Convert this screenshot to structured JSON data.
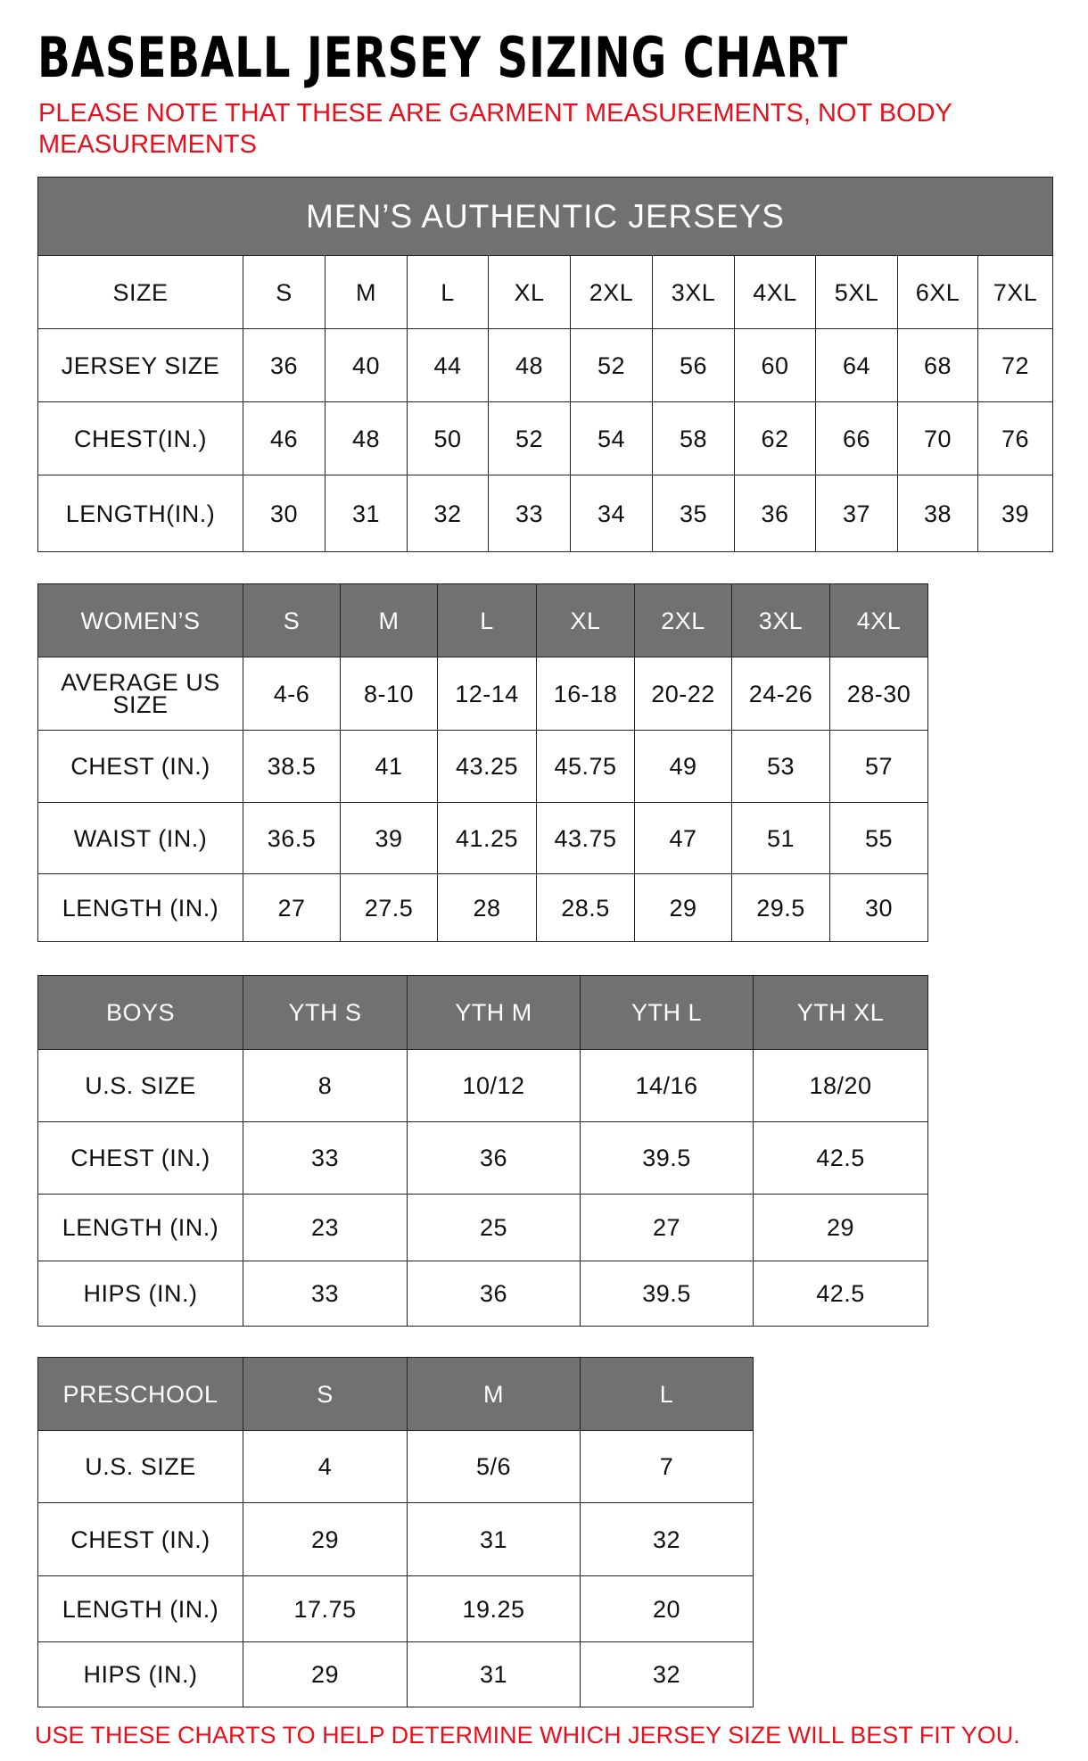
{
  "title": "BASEBALL JERSEY SIZING CHART",
  "note": "PLEASE NOTE THAT THESE ARE GARMENT MEASUREMENTS, NOT BODY MEASUREMENTS",
  "footer": "USE THESE CHARTS TO HELP DETERMINE WHICH JERSEY SIZE WILL BEST FIT YOU.",
  "colors": {
    "header_gray": "#717171",
    "note_red": "#e8101c"
  },
  "mens": {
    "banner": "MEN’S AUTHENTIC JERSEYS",
    "header": [
      "SIZE",
      "S",
      "M",
      "L",
      "XL",
      "2XL",
      "3XL",
      "4XL",
      "5XL",
      "6XL",
      "7XL"
    ],
    "rows": [
      [
        "JERSEY SIZE",
        "36",
        "40",
        "44",
        "48",
        "52",
        "56",
        "60",
        "64",
        "68",
        "72"
      ],
      [
        "CHEST(IN.)",
        "46",
        "48",
        "50",
        "52",
        "54",
        "58",
        "62",
        "66",
        "70",
        "76"
      ],
      [
        "LENGTH(IN.)",
        "30",
        "31",
        "32",
        "33",
        "34",
        "35",
        "36",
        "37",
        "38",
        "39"
      ]
    ]
  },
  "womens": {
    "header": [
      "WOMEN’S",
      "S",
      "M",
      "L",
      "XL",
      "2XL",
      "3XL",
      "4XL"
    ],
    "rows": [
      [
        "AVERAGE US SIZE",
        "4-6",
        "8-10",
        "12-14",
        "16-18",
        "20-22",
        "24-26",
        "28-30"
      ],
      [
        "CHEST (IN.)",
        "38.5",
        "41",
        "43.25",
        "45.75",
        "49",
        "53",
        "57"
      ],
      [
        "WAIST (IN.)",
        "36.5",
        "39",
        "41.25",
        "43.75",
        "47",
        "51",
        "55"
      ],
      [
        "LENGTH (IN.)",
        "27",
        "27.5",
        "28",
        "28.5",
        "29",
        "29.5",
        "30"
      ]
    ]
  },
  "boys": {
    "header": [
      "BOYS",
      "YTH S",
      "YTH M",
      "YTH L",
      "YTH XL"
    ],
    "rows": [
      [
        "U.S. SIZE",
        "8",
        "10/12",
        "14/16",
        "18/20"
      ],
      [
        "CHEST (IN.)",
        "33",
        "36",
        "39.5",
        "42.5"
      ],
      [
        "LENGTH (IN.)",
        "23",
        "25",
        "27",
        "29"
      ],
      [
        "HIPS (IN.)",
        "33",
        "36",
        "39.5",
        "42.5"
      ]
    ]
  },
  "preschool": {
    "header": [
      "PRESCHOOL",
      "S",
      "M",
      "L"
    ],
    "rows": [
      [
        "U.S. SIZE",
        "4",
        "5/6",
        "7"
      ],
      [
        "CHEST (IN.)",
        "29",
        "31",
        "32"
      ],
      [
        "LENGTH (IN.)",
        "17.75",
        "19.25",
        "20"
      ],
      [
        "HIPS (IN.)",
        "29",
        "31",
        "32"
      ]
    ]
  }
}
